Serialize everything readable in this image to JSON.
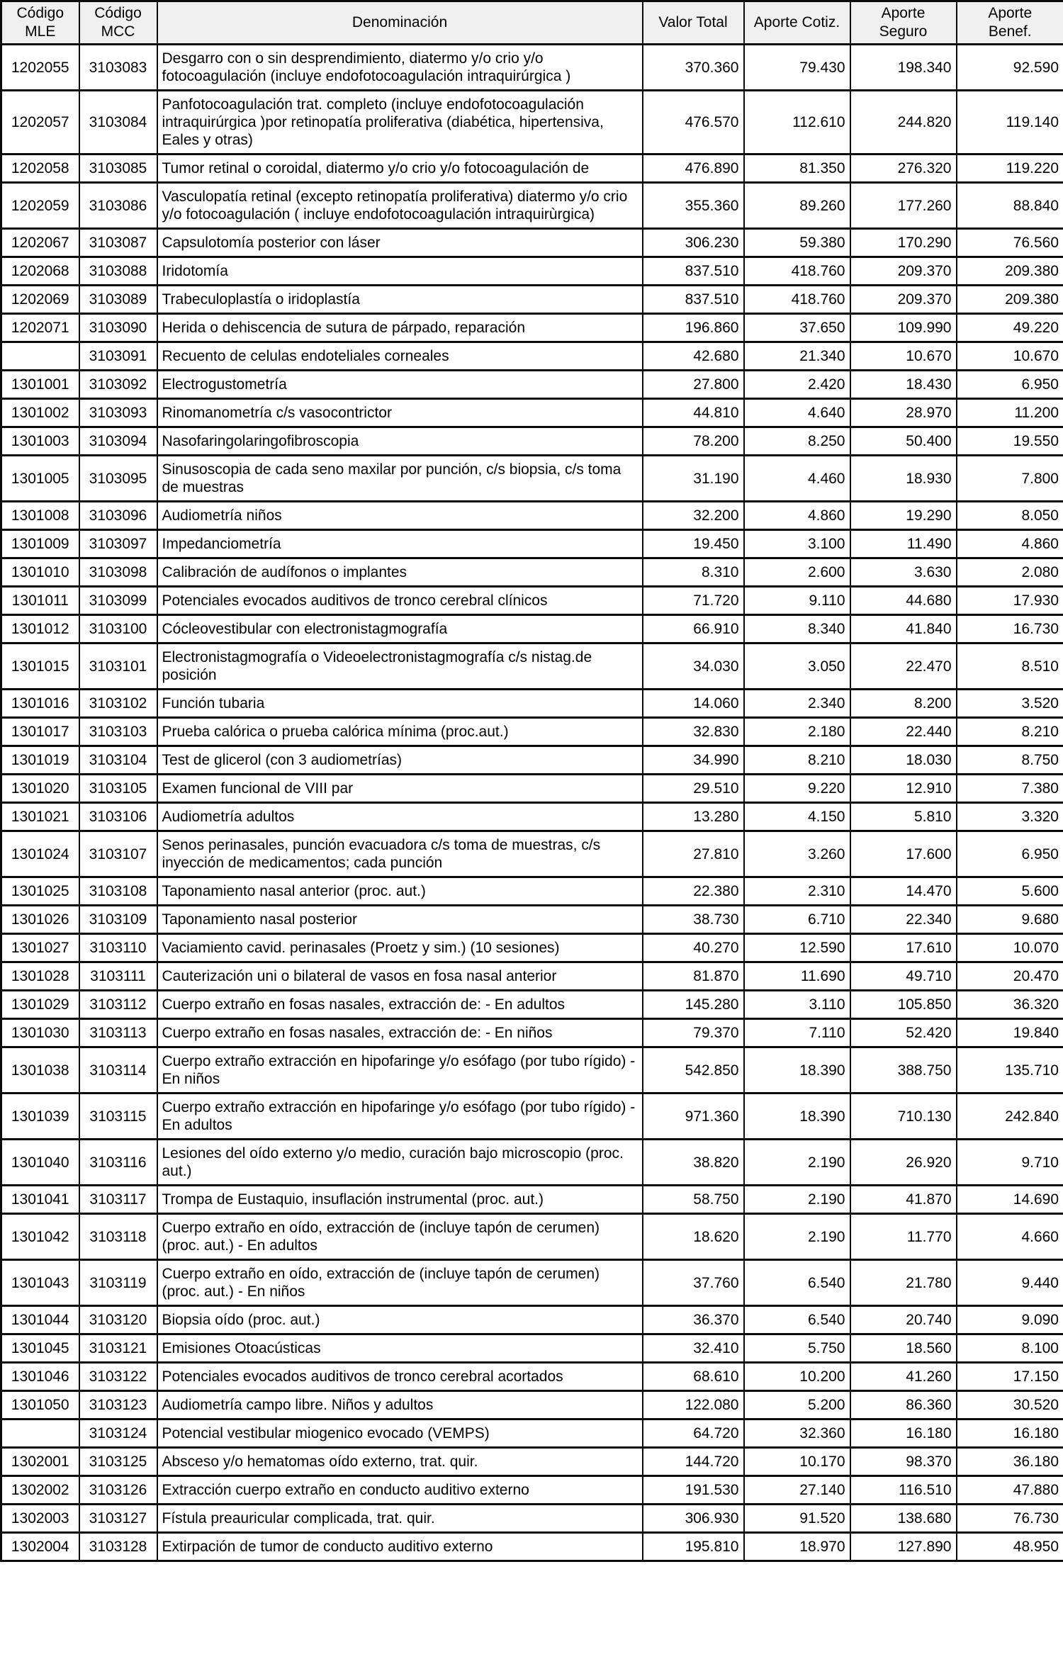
{
  "table": {
    "columns": [
      {
        "id": "codigo_mle",
        "lines": [
          "Código",
          "MLE"
        ]
      },
      {
        "id": "codigo_mcc",
        "lines": [
          "Código",
          "MCC"
        ]
      },
      {
        "id": "denominacion",
        "lines": [
          "Denominación"
        ]
      },
      {
        "id": "valor_total",
        "lines": [
          "Valor Total"
        ]
      },
      {
        "id": "aporte_cotiz",
        "lines": [
          "Aporte Cotiz."
        ]
      },
      {
        "id": "aporte_seguro",
        "lines": [
          "Aporte",
          "Seguro"
        ]
      },
      {
        "id": "aporte_benef",
        "lines": [
          "Aporte",
          "Benef."
        ]
      }
    ],
    "rows": [
      {
        "codigo_mle": "1202055",
        "codigo_mcc": "3103083",
        "denominacion": "Desgarro  con o sin desprendimiento, diatermo y/o crio y/o fotocoagulación (incluye endofotocoagulación intraquirúrgica )",
        "valor_total": "370.360",
        "aporte_cotiz": "79.430",
        "aporte_seguro": "198.340",
        "aporte_benef": "92.590"
      },
      {
        "codigo_mle": "1202057",
        "codigo_mcc": "3103084",
        "denominacion": "Panfotocoagulación trat. completo (incluye endofotocoagulación intraquirúrgica )por retinopatía proliferativa (diabética, hipertensiva, Eales y otras)",
        "valor_total": "476.570",
        "aporte_cotiz": "112.610",
        "aporte_seguro": "244.820",
        "aporte_benef": "119.140"
      },
      {
        "codigo_mle": "1202058",
        "codigo_mcc": "3103085",
        "denominacion": "Tumor retinal o coroidal, diatermo y/o crio y/o fotocoagulación de",
        "valor_total": "476.890",
        "aporte_cotiz": "81.350",
        "aporte_seguro": "276.320",
        "aporte_benef": "119.220"
      },
      {
        "codigo_mle": "1202059",
        "codigo_mcc": "3103086",
        "denominacion": "Vasculopatía retinal (excepto retinopatía proliferativa) diatermo y/o crio y/o fotocoagulación ( incluye endofotocoagulación intraquirùrgica)",
        "valor_total": "355.360",
        "aporte_cotiz": "89.260",
        "aporte_seguro": "177.260",
        "aporte_benef": "88.840"
      },
      {
        "codigo_mle": "1202067",
        "codigo_mcc": "3103087",
        "denominacion": "Capsulotomía posterior con láser",
        "valor_total": "306.230",
        "aporte_cotiz": "59.380",
        "aporte_seguro": "170.290",
        "aporte_benef": "76.560"
      },
      {
        "codigo_mle": "1202068",
        "codigo_mcc": "3103088",
        "denominacion": "Iridotomía",
        "valor_total": "837.510",
        "aporte_cotiz": "418.760",
        "aporte_seguro": "209.370",
        "aporte_benef": "209.380"
      },
      {
        "codigo_mle": "1202069",
        "codigo_mcc": "3103089",
        "denominacion": "Trabeculoplastía o iridoplastía",
        "valor_total": "837.510",
        "aporte_cotiz": "418.760",
        "aporte_seguro": "209.370",
        "aporte_benef": "209.380"
      },
      {
        "codigo_mle": "1202071",
        "codigo_mcc": "3103090",
        "denominacion": "Herida o dehiscencia de sutura de párpado, reparación",
        "valor_total": "196.860",
        "aporte_cotiz": "37.650",
        "aporte_seguro": "109.990",
        "aporte_benef": "49.220"
      },
      {
        "codigo_mle": "",
        "codigo_mcc": "3103091",
        "denominacion": "Recuento de celulas endoteliales corneales",
        "valor_total": "42.680",
        "aporte_cotiz": "21.340",
        "aporte_seguro": "10.670",
        "aporte_benef": "10.670"
      },
      {
        "codigo_mle": "1301001",
        "codigo_mcc": "3103092",
        "denominacion": "Electrogustometría",
        "valor_total": "27.800",
        "aporte_cotiz": "2.420",
        "aporte_seguro": "18.430",
        "aporte_benef": "6.950"
      },
      {
        "codigo_mle": "1301002",
        "codigo_mcc": "3103093",
        "denominacion": "Rinomanometría c/s vasocontrictor",
        "valor_total": "44.810",
        "aporte_cotiz": "4.640",
        "aporte_seguro": "28.970",
        "aporte_benef": "11.200"
      },
      {
        "codigo_mle": "1301003",
        "codigo_mcc": "3103094",
        "denominacion": "Nasofaringolaringofibroscopia",
        "valor_total": "78.200",
        "aporte_cotiz": "8.250",
        "aporte_seguro": "50.400",
        "aporte_benef": "19.550"
      },
      {
        "codigo_mle": "1301005",
        "codigo_mcc": "3103095",
        "denominacion": "Sinusoscopia de cada seno maxilar por punción, c/s biopsia, c/s toma de muestras",
        "valor_total": "31.190",
        "aporte_cotiz": "4.460",
        "aporte_seguro": "18.930",
        "aporte_benef": "7.800"
      },
      {
        "codigo_mle": "1301008",
        "codigo_mcc": "3103096",
        "denominacion": "Audiometría niños",
        "valor_total": "32.200",
        "aporte_cotiz": "4.860",
        "aporte_seguro": "19.290",
        "aporte_benef": "8.050"
      },
      {
        "codigo_mle": "1301009",
        "codigo_mcc": "3103097",
        "denominacion": "Impedanciometría",
        "valor_total": "19.450",
        "aporte_cotiz": "3.100",
        "aporte_seguro": "11.490",
        "aporte_benef": "4.860"
      },
      {
        "codigo_mle": "1301010",
        "codigo_mcc": "3103098",
        "denominacion": "Calibración de audífonos o implantes",
        "valor_total": "8.310",
        "aporte_cotiz": "2.600",
        "aporte_seguro": "3.630",
        "aporte_benef": "2.080"
      },
      {
        "codigo_mle": "1301011",
        "codigo_mcc": "3103099",
        "denominacion": "Potenciales evocados auditivos de tronco cerebral clínicos",
        "valor_total": "71.720",
        "aporte_cotiz": "9.110",
        "aporte_seguro": "44.680",
        "aporte_benef": "17.930"
      },
      {
        "codigo_mle": "1301012",
        "codigo_mcc": "3103100",
        "denominacion": "Cócleovestibular con electronistagmografía",
        "valor_total": "66.910",
        "aporte_cotiz": "8.340",
        "aporte_seguro": "41.840",
        "aporte_benef": "16.730"
      },
      {
        "codigo_mle": "1301015",
        "codigo_mcc": "3103101",
        "denominacion": "Electronistagmografía o Videoelectronistagmografía c/s nistag.de posición",
        "valor_total": "34.030",
        "aporte_cotiz": "3.050",
        "aporte_seguro": "22.470",
        "aporte_benef": "8.510"
      },
      {
        "codigo_mle": "1301016",
        "codigo_mcc": "3103102",
        "denominacion": "Función tubaria",
        "valor_total": "14.060",
        "aporte_cotiz": "2.340",
        "aporte_seguro": "8.200",
        "aporte_benef": "3.520"
      },
      {
        "codigo_mle": "1301017",
        "codigo_mcc": "3103103",
        "denominacion": "Prueba calórica o prueba calórica mínima (proc.aut.)",
        "valor_total": "32.830",
        "aporte_cotiz": "2.180",
        "aporte_seguro": "22.440",
        "aporte_benef": "8.210"
      },
      {
        "codigo_mle": "1301019",
        "codigo_mcc": "3103104",
        "denominacion": "Test de glicerol (con 3 audiometrías)",
        "valor_total": "34.990",
        "aporte_cotiz": "8.210",
        "aporte_seguro": "18.030",
        "aporte_benef": "8.750"
      },
      {
        "codigo_mle": "1301020",
        "codigo_mcc": "3103105",
        "denominacion": "Examen funcional de VIII par",
        "valor_total": "29.510",
        "aporte_cotiz": "9.220",
        "aporte_seguro": "12.910",
        "aporte_benef": "7.380"
      },
      {
        "codigo_mle": "1301021",
        "codigo_mcc": "3103106",
        "denominacion": "Audiometría adultos",
        "valor_total": "13.280",
        "aporte_cotiz": "4.150",
        "aporte_seguro": "5.810",
        "aporte_benef": "3.320"
      },
      {
        "codigo_mle": "1301024",
        "codigo_mcc": "3103107",
        "denominacion": "Senos perinasales, punción evacuadora c/s toma de muestras, c/s inyección de medicamentos; cada punción",
        "valor_total": "27.810",
        "aporte_cotiz": "3.260",
        "aporte_seguro": "17.600",
        "aporte_benef": "6.950"
      },
      {
        "codigo_mle": "1301025",
        "codigo_mcc": "3103108",
        "denominacion": "Taponamiento nasal anterior (proc. aut.)",
        "valor_total": "22.380",
        "aporte_cotiz": "2.310",
        "aporte_seguro": "14.470",
        "aporte_benef": "5.600"
      },
      {
        "codigo_mle": "1301026",
        "codigo_mcc": "3103109",
        "denominacion": "Taponamiento nasal posterior",
        "valor_total": "38.730",
        "aporte_cotiz": "6.710",
        "aporte_seguro": "22.340",
        "aporte_benef": "9.680"
      },
      {
        "codigo_mle": "1301027",
        "codigo_mcc": "3103110",
        "denominacion": "Vaciamiento cavid. perinasales (Proetz y sim.) (10 sesiones)",
        "valor_total": "40.270",
        "aporte_cotiz": "12.590",
        "aporte_seguro": "17.610",
        "aporte_benef": "10.070"
      },
      {
        "codigo_mle": "1301028",
        "codigo_mcc": "3103111",
        "denominacion": "Cauterización uni o bilateral de vasos en fosa nasal anterior",
        "valor_total": "81.870",
        "aporte_cotiz": "11.690",
        "aporte_seguro": "49.710",
        "aporte_benef": "20.470"
      },
      {
        "codigo_mle": "1301029",
        "codigo_mcc": "3103112",
        "denominacion": "Cuerpo extraño en fosas nasales, extracción de: - En adultos",
        "valor_total": "145.280",
        "aporte_cotiz": "3.110",
        "aporte_seguro": "105.850",
        "aporte_benef": "36.320"
      },
      {
        "codigo_mle": "1301030",
        "codigo_mcc": "3103113",
        "denominacion": "Cuerpo extraño en fosas nasales, extracción de: - En niños",
        "valor_total": "79.370",
        "aporte_cotiz": "7.110",
        "aporte_seguro": "52.420",
        "aporte_benef": "19.840"
      },
      {
        "codigo_mle": "1301038",
        "codigo_mcc": "3103114",
        "denominacion": "Cuerpo extraño extracción en hipofaringe y/o esófago (por tubo rígido) - En niños",
        "valor_total": "542.850",
        "aporte_cotiz": "18.390",
        "aporte_seguro": "388.750",
        "aporte_benef": "135.710"
      },
      {
        "codigo_mle": "1301039",
        "codigo_mcc": "3103115",
        "denominacion": "Cuerpo extraño extracción en hipofaringe y/o esófago (por tubo rígido) - En adultos",
        "valor_total": "971.360",
        "aporte_cotiz": "18.390",
        "aporte_seguro": "710.130",
        "aporte_benef": "242.840"
      },
      {
        "codigo_mle": "1301040",
        "codigo_mcc": "3103116",
        "denominacion": "Lesiones del oído externo y/o medio, curación bajo microscopio (proc. aut.)",
        "valor_total": "38.820",
        "aporte_cotiz": "2.190",
        "aporte_seguro": "26.920",
        "aporte_benef": "9.710"
      },
      {
        "codigo_mle": "1301041",
        "codigo_mcc": "3103117",
        "denominacion": "Trompa de Eustaquio, insuflación instrumental (proc. aut.)",
        "valor_total": "58.750",
        "aporte_cotiz": "2.190",
        "aporte_seguro": "41.870",
        "aporte_benef": "14.690"
      },
      {
        "codigo_mle": "1301042",
        "codigo_mcc": "3103118",
        "denominacion": "Cuerpo extraño en oído, extracción de (incluye tapón de cerumen) (proc. aut.) - En adultos",
        "valor_total": "18.620",
        "aporte_cotiz": "2.190",
        "aporte_seguro": "11.770",
        "aporte_benef": "4.660"
      },
      {
        "codigo_mle": "1301043",
        "codigo_mcc": "3103119",
        "denominacion": "Cuerpo extraño en oído, extracción de (incluye tapón de cerumen) (proc. aut.) - En niños",
        "valor_total": "37.760",
        "aporte_cotiz": "6.540",
        "aporte_seguro": "21.780",
        "aporte_benef": "9.440"
      },
      {
        "codigo_mle": "1301044",
        "codigo_mcc": "3103120",
        "denominacion": "Biopsia oído (proc. aut.)",
        "valor_total": "36.370",
        "aporte_cotiz": "6.540",
        "aporte_seguro": "20.740",
        "aporte_benef": "9.090"
      },
      {
        "codigo_mle": "1301045",
        "codigo_mcc": "3103121",
        "denominacion": "Emisiones Otoacústicas",
        "valor_total": "32.410",
        "aporte_cotiz": "5.750",
        "aporte_seguro": "18.560",
        "aporte_benef": "8.100"
      },
      {
        "codigo_mle": "1301046",
        "codigo_mcc": "3103122",
        "denominacion": "Potenciales evocados auditivos de tronco cerebral acortados",
        "valor_total": "68.610",
        "aporte_cotiz": "10.200",
        "aporte_seguro": "41.260",
        "aporte_benef": "17.150"
      },
      {
        "codigo_mle": "1301050",
        "codigo_mcc": "3103123",
        "denominacion": "Audiometría campo libre. Niños y adultos",
        "valor_total": "122.080",
        "aporte_cotiz": "5.200",
        "aporte_seguro": "86.360",
        "aporte_benef": "30.520"
      },
      {
        "codigo_mle": "",
        "codigo_mcc": "3103124",
        "denominacion": "Potencial vestibular miogenico evocado (VEMPS)",
        "valor_total": "64.720",
        "aporte_cotiz": "32.360",
        "aporte_seguro": "16.180",
        "aporte_benef": "16.180"
      },
      {
        "codigo_mle": "1302001",
        "codigo_mcc": "3103125",
        "denominacion": "Absceso y/o hematomas oído externo, trat. quir.",
        "valor_total": "144.720",
        "aporte_cotiz": "10.170",
        "aporte_seguro": "98.370",
        "aporte_benef": "36.180"
      },
      {
        "codigo_mle": "1302002",
        "codigo_mcc": "3103126",
        "denominacion": "Extracción cuerpo extraño en conducto auditivo externo",
        "valor_total": "191.530",
        "aporte_cotiz": "27.140",
        "aporte_seguro": "116.510",
        "aporte_benef": "47.880"
      },
      {
        "codigo_mle": "1302003",
        "codigo_mcc": "3103127",
        "denominacion": "Fístula preauricular complicada, trat. quir.",
        "valor_total": "306.930",
        "aporte_cotiz": "91.520",
        "aporte_seguro": "138.680",
        "aporte_benef": "76.730"
      },
      {
        "codigo_mle": "1302004",
        "codigo_mcc": "3103128",
        "denominacion": "Extirpación de tumor de conducto auditivo externo",
        "valor_total": "195.810",
        "aporte_cotiz": "18.970",
        "aporte_seguro": "127.890",
        "aporte_benef": "48.950"
      }
    ]
  },
  "colors": {
    "header_bg": "#f0f0f0",
    "border": "#0a0a0a",
    "text": "#000000",
    "row_bg": "#ffffff"
  }
}
